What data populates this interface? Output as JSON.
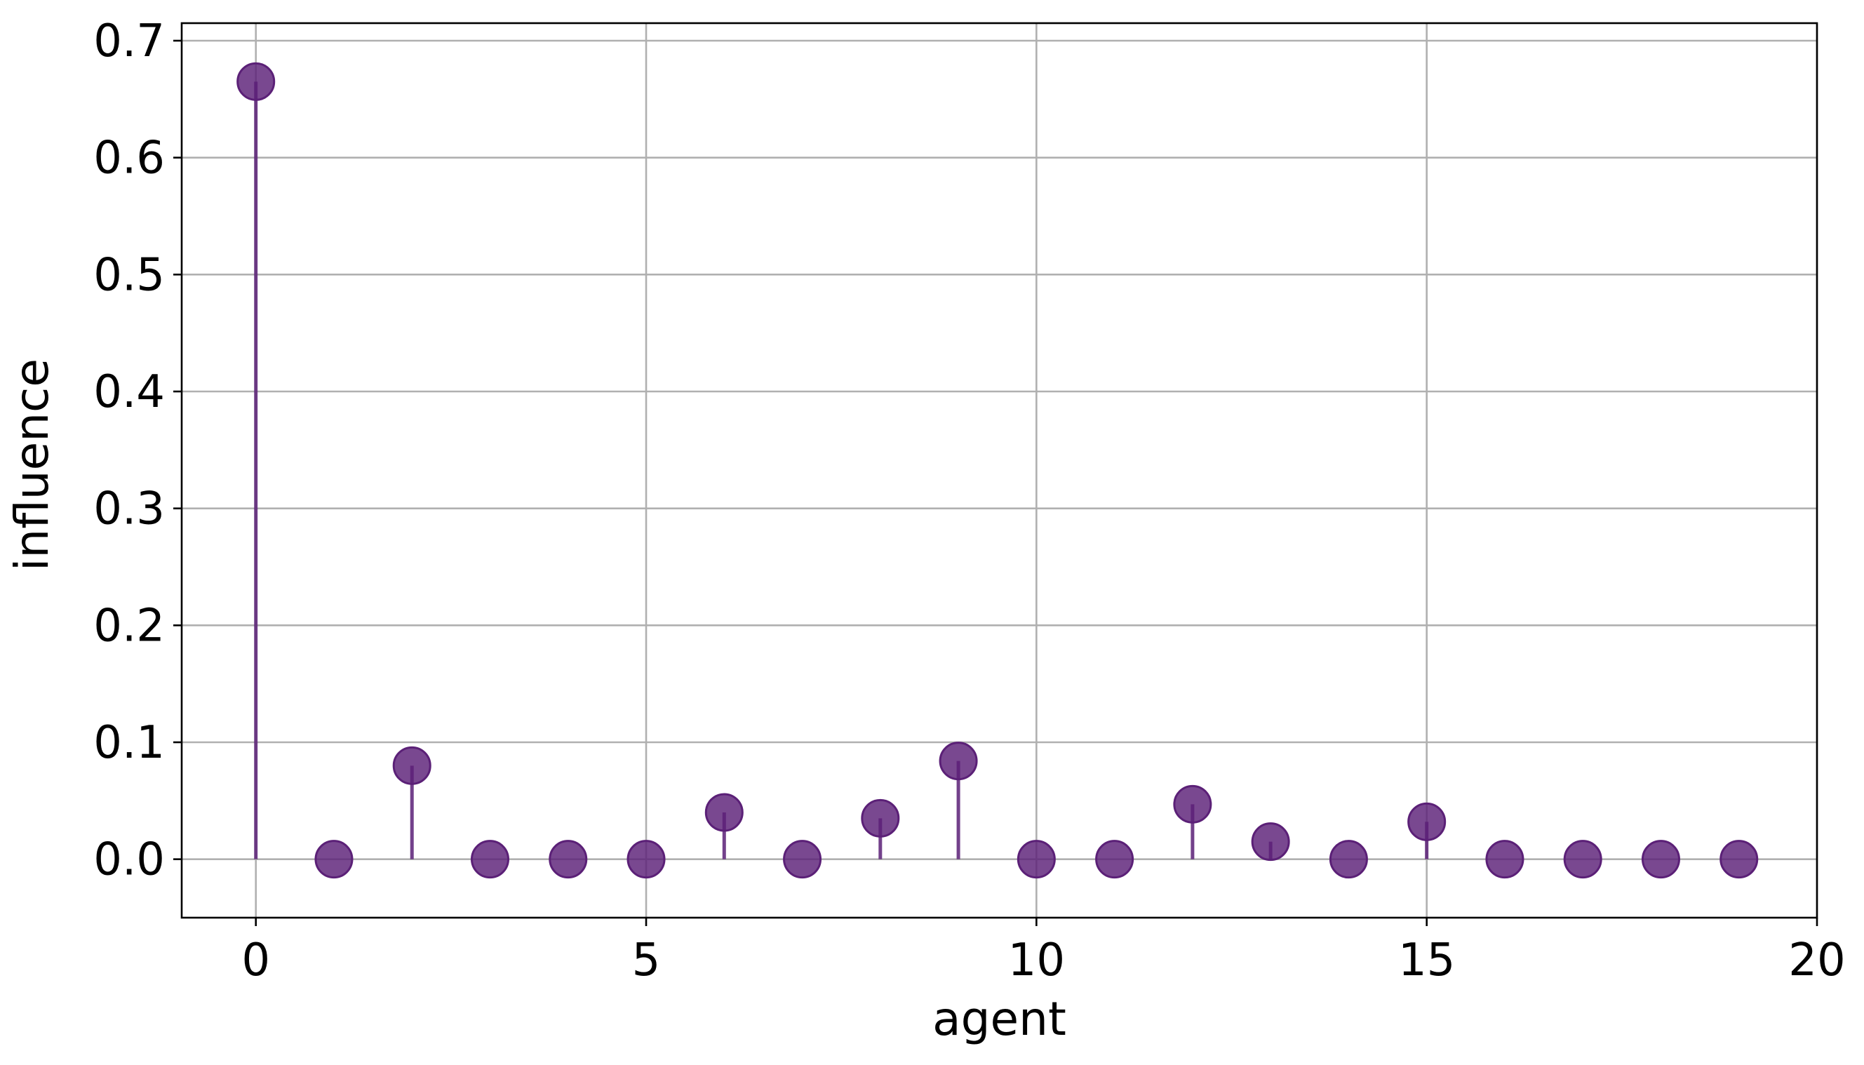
{
  "chart_data": {
    "type": "scatter",
    "variant": "stem",
    "xlabel": "agent",
    "ylabel": "influence",
    "xlim": [
      -0.95,
      20
    ],
    "ylim": [
      -0.05,
      0.715
    ],
    "xticks": [
      0,
      5,
      10,
      15,
      20
    ],
    "yticks": [
      0.0,
      0.1,
      0.2,
      0.3,
      0.4,
      0.5,
      0.6,
      0.7
    ],
    "xtick_labels": [
      "0",
      "5",
      "10",
      "15",
      "20"
    ],
    "ytick_labels": [
      "0.0",
      "0.1",
      "0.2",
      "0.3",
      "0.4",
      "0.5",
      "0.6",
      "0.7"
    ],
    "grid": true,
    "legend": false,
    "marker_color": "#5b2077",
    "x": [
      0,
      1,
      2,
      3,
      4,
      5,
      6,
      7,
      8,
      9,
      10,
      11,
      12,
      13,
      14,
      15,
      16,
      17,
      18,
      19
    ],
    "values": [
      0.665,
      0.0,
      0.08,
      0.0,
      0.0,
      0.0,
      0.04,
      0.0,
      0.035,
      0.084,
      0.0,
      0.0,
      0.047,
      0.015,
      0.0,
      0.032,
      0.0,
      0.0,
      0.0,
      0.0
    ]
  }
}
